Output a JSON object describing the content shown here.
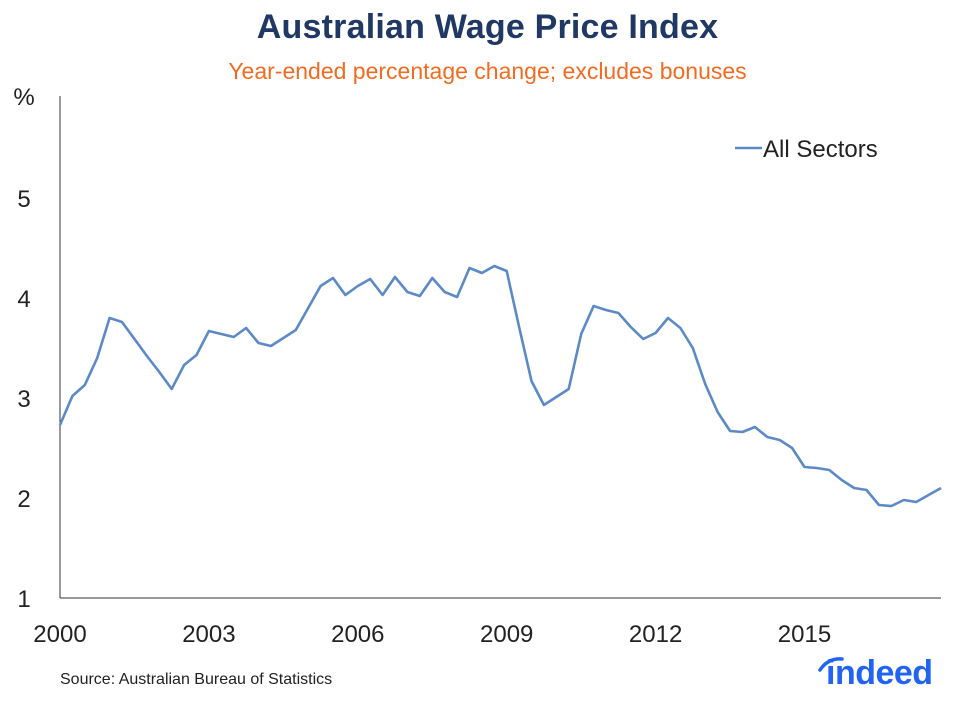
{
  "title": "Australian Wage Price Index",
  "subtitle": "Year-ended percentage change; excludes bonuses",
  "source": "Source: Australian Bureau of Statistics",
  "logo_text": "indeed",
  "colors": {
    "title": "#1f3864",
    "subtitle": "#f26b21",
    "line": "#5b8ac6",
    "logo": "#2164f3"
  },
  "chart_data": {
    "type": "line",
    "title": "Australian Wage Price Index",
    "subtitle": "Year-ended percentage change; excludes bonuses",
    "ylabel": "%",
    "ylim": [
      1,
      6
    ],
    "yticks": [
      1,
      2,
      3,
      4,
      5
    ],
    "xlim": [
      2000,
      2017.75
    ],
    "xticks": [
      2000,
      2003,
      2006,
      2009,
      2012,
      2015
    ],
    "grid": false,
    "legend_position": "top-right",
    "series": [
      {
        "name": "All Sectors",
        "x": [
          2000.0,
          2000.25,
          2000.5,
          2000.75,
          2001.0,
          2001.25,
          2001.5,
          2001.75,
          2002.0,
          2002.25,
          2002.5,
          2002.75,
          2003.0,
          2003.25,
          2003.5,
          2003.75,
          2004.0,
          2004.25,
          2004.5,
          2004.75,
          2005.0,
          2005.25,
          2005.5,
          2005.75,
          2006.0,
          2006.25,
          2006.5,
          2006.75,
          2007.0,
          2007.25,
          2007.5,
          2007.75,
          2008.0,
          2008.25,
          2008.5,
          2008.75,
          2009.0,
          2009.25,
          2009.5,
          2009.75,
          2010.0,
          2010.25,
          2010.5,
          2010.75,
          2011.0,
          2011.25,
          2011.5,
          2011.75,
          2012.0,
          2012.25,
          2012.5,
          2012.75,
          2013.0,
          2013.25,
          2013.5,
          2013.75,
          2014.0,
          2014.25,
          2014.5,
          2014.75,
          2015.0,
          2015.25,
          2015.5,
          2015.75,
          2016.0,
          2016.25,
          2016.5,
          2016.75,
          2017.0,
          2017.25,
          2017.5,
          2017.75
        ],
        "y": [
          2.73,
          3.02,
          3.13,
          3.4,
          3.8,
          3.76,
          3.59,
          3.42,
          3.26,
          3.09,
          3.33,
          3.43,
          3.67,
          3.64,
          3.61,
          3.7,
          3.55,
          3.52,
          3.6,
          3.68,
          3.9,
          4.12,
          4.2,
          4.03,
          4.12,
          4.19,
          4.03,
          4.21,
          4.06,
          4.02,
          4.2,
          4.06,
          4.01,
          4.3,
          4.25,
          4.32,
          4.27,
          3.71,
          3.17,
          2.93,
          3.01,
          3.09,
          3.64,
          3.92,
          3.88,
          3.85,
          3.71,
          3.59,
          3.65,
          3.8,
          3.7,
          3.5,
          3.14,
          2.86,
          2.67,
          2.66,
          2.71,
          2.61,
          2.58,
          2.5,
          2.31,
          2.3,
          2.28,
          2.18,
          2.1,
          2.08,
          1.93,
          1.92,
          1.98,
          1.96,
          2.03,
          2.1
        ]
      }
    ]
  }
}
